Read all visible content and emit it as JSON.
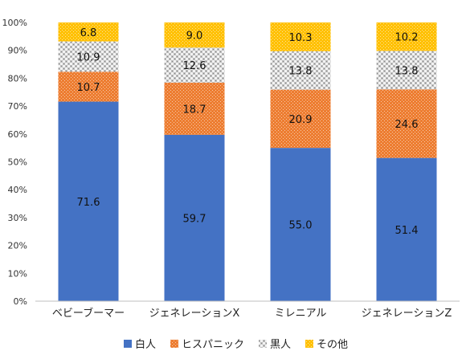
{
  "chart_data": {
    "type": "bar",
    "stacked": true,
    "categories": [
      "ベビーブーマー",
      "ジェネレーションX",
      "ミレニアル",
      "ジェネレーションZ"
    ],
    "ylim": [
      0,
      100
    ],
    "yticks": [
      "0%",
      "10%",
      "20%",
      "30%",
      "40%",
      "50%",
      "60%",
      "70%",
      "80%",
      "90%",
      "100%"
    ],
    "grid": false,
    "legend_position": "bottom",
    "series": [
      {
        "name": "白人",
        "values": [
          71.6,
          59.7,
          55.0,
          51.4
        ],
        "labels": [
          "71.6",
          "59.7",
          "55.0",
          "51.4"
        ],
        "color": "#4472C4",
        "pattern": "solid"
      },
      {
        "name": "ヒスパニック",
        "values": [
          10.7,
          18.7,
          20.9,
          24.6
        ],
        "labels": [
          "10.7",
          "18.7",
          "20.9",
          "24.6"
        ],
        "color": "#ED7D31",
        "pattern": "dots"
      },
      {
        "name": "黒人",
        "values": [
          10.9,
          12.6,
          13.8,
          13.8
        ],
        "labels": [
          "10.9",
          "12.6",
          "13.8",
          "13.8"
        ],
        "color": "#A5A5A5",
        "pattern": "checker"
      },
      {
        "name": "その他",
        "values": [
          6.8,
          9.0,
          10.3,
          10.2
        ],
        "labels": [
          "6.8",
          "9.0",
          "10.3",
          "10.2"
        ],
        "color": "#FFC000",
        "pattern": "dots"
      }
    ]
  }
}
